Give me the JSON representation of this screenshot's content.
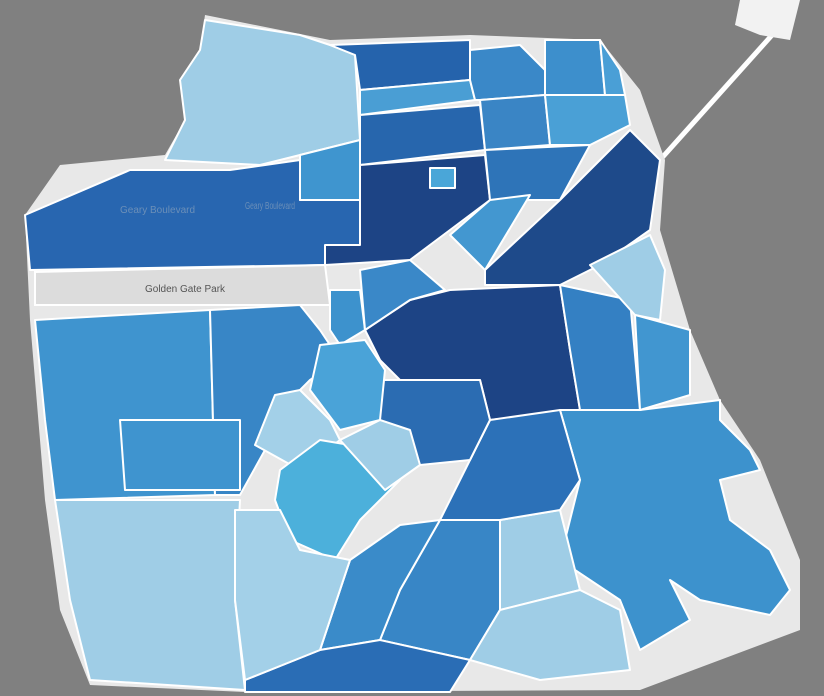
{
  "map_labels": [
    "Geary Boulevard",
    "Geary Boulevard",
    "Golden Gate Park"
  ]
}
